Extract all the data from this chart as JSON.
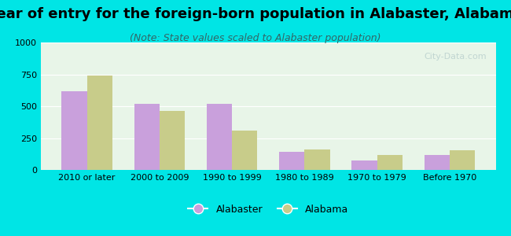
{
  "title": "Year of entry for the foreign-born population in Alabaster, Alabama",
  "subtitle": "(Note: State values scaled to Alabaster population)",
  "categories": [
    "2010 or later",
    "2000 to 2009",
    "1990 to 1999",
    "1980 to 1989",
    "1970 to 1979",
    "Before 1970"
  ],
  "alabaster_values": [
    620,
    520,
    520,
    140,
    75,
    115
  ],
  "alabama_values": [
    740,
    460,
    310,
    160,
    120,
    155
  ],
  "alabaster_color": "#c9a0dc",
  "alabama_color": "#c8cc8a",
  "background_outer": "#00e5e5",
  "background_inner": "#e8f5e8",
  "ylim": [
    0,
    1000
  ],
  "yticks": [
    0,
    250,
    500,
    750,
    1000
  ],
  "bar_width": 0.35,
  "title_fontsize": 13,
  "subtitle_fontsize": 9,
  "tick_fontsize": 8,
  "legend_fontsize": 9
}
